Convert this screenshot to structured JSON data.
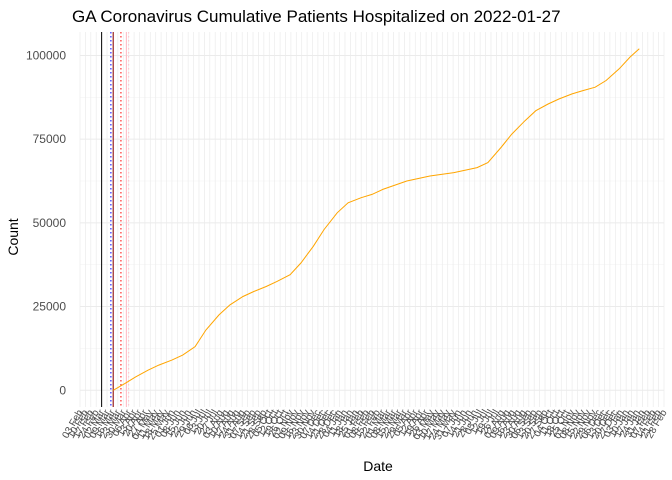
{
  "chart_data": {
    "type": "line",
    "title": "GA Coronavirus Cumulative Patients Hospitalized on 2022-01-27",
    "xlabel": "Date",
    "ylabel": "Count",
    "xlim": [
      "2020-02-03",
      "2022-02-28"
    ],
    "ylim": [
      -5000,
      107000
    ],
    "y_ticks": [
      0,
      25000,
      50000,
      75000,
      100000
    ],
    "x_tick_format": "%d %b",
    "x_tick_interval_days": 7,
    "grid": true,
    "line_color": "#FFA500",
    "series": [
      {
        "x": [
          "2020-03-17",
          "2020-04-01",
          "2020-04-15",
          "2020-05-01",
          "2020-05-15",
          "2020-06-01",
          "2020-06-15",
          "2020-07-01",
          "2020-07-15",
          "2020-08-01",
          "2020-08-15",
          "2020-09-01",
          "2020-09-15",
          "2020-10-01",
          "2020-10-15",
          "2020-11-01",
          "2020-11-15",
          "2020-12-01",
          "2020-12-15",
          "2021-01-01",
          "2021-01-15",
          "2021-02-01",
          "2021-02-15",
          "2021-03-01",
          "2021-04-01",
          "2021-05-01",
          "2021-06-01",
          "2021-07-01",
          "2021-07-15",
          "2021-08-01",
          "2021-08-15",
          "2021-09-01",
          "2021-09-15",
          "2021-10-01",
          "2021-10-15",
          "2021-11-01",
          "2021-11-15",
          "2021-12-01",
          "2021-12-15",
          "2022-01-01",
          "2022-01-15",
          "2022-01-27"
        ],
        "y": [
          0,
          2000,
          4000,
          6000,
          7500,
          9000,
          10500,
          13000,
          18000,
          22500,
          25500,
          28000,
          29500,
          31000,
          32500,
          34500,
          38000,
          43000,
          48000,
          53000,
          56000,
          57500,
          58500,
          60000,
          62500,
          64000,
          65000,
          66500,
          68000,
          72500,
          76500,
          80500,
          83500,
          85500,
          87000,
          88500,
          89500,
          90500,
          92500,
          96000,
          99500,
          102000
        ]
      }
    ],
    "vlines": [
      {
        "x": "2020-03-02",
        "color": "#000000",
        "style": "solid"
      },
      {
        "x": "2020-03-14",
        "color": "#0000FF",
        "style": "dotted"
      },
      {
        "x": "2020-03-17",
        "color": "#8B0000",
        "style": "solid"
      },
      {
        "x": "2020-03-27",
        "color": "#FF0000",
        "style": "dotted"
      },
      {
        "x": "2020-04-03",
        "color": "#FFB6C1",
        "style": "solid"
      },
      {
        "x": "2020-04-06",
        "color": "#FFC0CB",
        "style": "dotted"
      }
    ]
  }
}
